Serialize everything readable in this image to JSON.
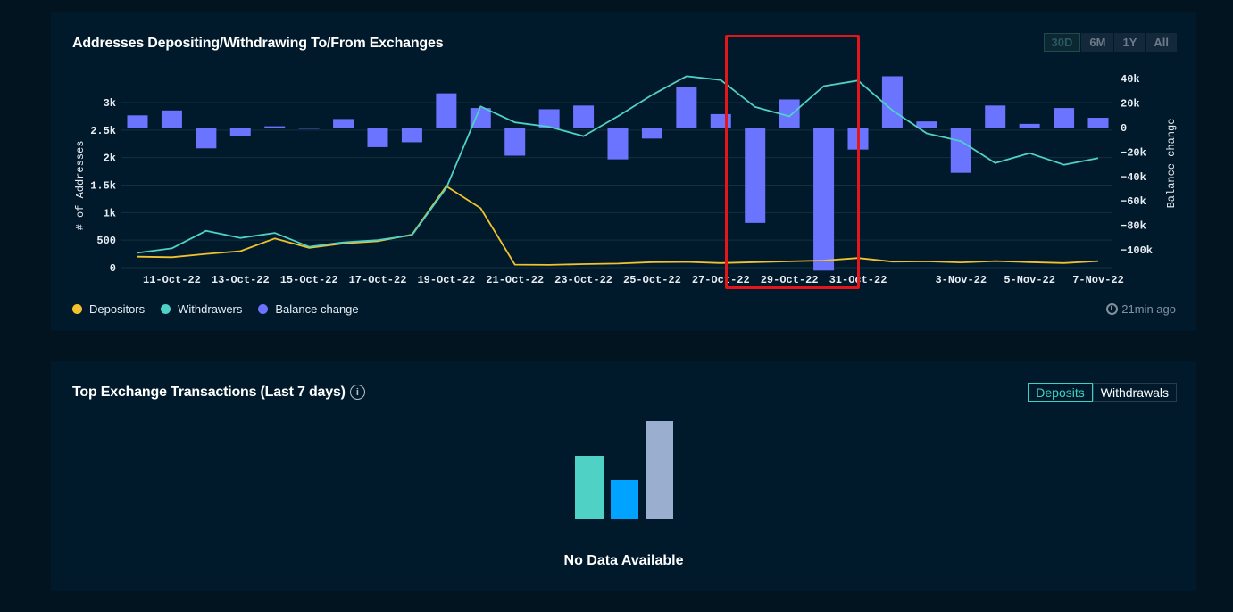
{
  "deposit_chart": {
    "title": "Addresses Depositing/Withdrawing To/From Exchanges",
    "range_buttons": [
      {
        "label": "30D",
        "active": true
      },
      {
        "label": "6M",
        "active": false
      },
      {
        "label": "1Y",
        "active": false
      },
      {
        "label": "All",
        "active": false
      }
    ],
    "legend": [
      {
        "label": "Depositors",
        "color": "#f2c12e"
      },
      {
        "label": "Withdrawers",
        "color": "#4fd1c5"
      },
      {
        "label": "Balance change",
        "color": "#6b74ff"
      }
    ],
    "updated": "21min ago"
  },
  "chart_data": {
    "type": "bar+line",
    "ylabel": "# of Addresses",
    "y2label": "Balance change",
    "ylim": [
      0,
      3000
    ],
    "y2lim": [
      -115000,
      40000
    ],
    "y_ticks": [
      0,
      500,
      1000,
      1500,
      2000,
      2500,
      3000
    ],
    "y_tick_labels": [
      "0",
      "500",
      "1k",
      "1.5k",
      "2k",
      "2.5k",
      "3k"
    ],
    "y2_ticks": [
      40000,
      20000,
      0,
      -20000,
      -40000,
      -60000,
      -80000,
      -100000
    ],
    "y2_tick_labels": [
      "40k",
      "20k",
      "0",
      "−20k",
      "−40k",
      "−60k",
      "−80k",
      "−100k"
    ],
    "x_tick_labels": [
      "11-Oct-22",
      "13-Oct-22",
      "15-Oct-22",
      "17-Oct-22",
      "19-Oct-22",
      "21-Oct-22",
      "23-Oct-22",
      "25-Oct-22",
      "27-Oct-22",
      "29-Oct-22",
      "31-Oct-22",
      "3-Nov-22",
      "5-Nov-22",
      "7-Nov-22"
    ],
    "x_tick_index": [
      1,
      3,
      5,
      7,
      9,
      11,
      13,
      15,
      17,
      19,
      21,
      24,
      26,
      28
    ],
    "x": [
      "10-Oct-22",
      "11-Oct-22",
      "12-Oct-22",
      "13-Oct-22",
      "14-Oct-22",
      "15-Oct-22",
      "16-Oct-22",
      "17-Oct-22",
      "18-Oct-22",
      "19-Oct-22",
      "20-Oct-22",
      "21-Oct-22",
      "22-Oct-22",
      "23-Oct-22",
      "24-Oct-22",
      "25-Oct-22",
      "26-Oct-22",
      "27-Oct-22",
      "28-Oct-22",
      "29-Oct-22",
      "30-Oct-22",
      "31-Oct-22",
      "1-Nov-22",
      "2-Nov-22",
      "3-Nov-22",
      "4-Nov-22",
      "5-Nov-22",
      "6-Nov-22",
      "7-Nov-22"
    ],
    "series": [
      {
        "name": "Depositors",
        "axis": "left",
        "kind": "line",
        "color": "#f2c12e",
        "values": [
          200,
          190,
          250,
          300,
          530,
          360,
          440,
          480,
          600,
          1480,
          1080,
          55,
          50,
          65,
          75,
          100,
          105,
          85,
          100,
          115,
          130,
          175,
          110,
          115,
          95,
          120,
          100,
          85,
          120
        ]
      },
      {
        "name": "Withdrawers",
        "axis": "left",
        "kind": "line",
        "color": "#4fd1c5",
        "values": [
          270,
          350,
          670,
          540,
          630,
          380,
          460,
          500,
          590,
          1450,
          2930,
          2640,
          2560,
          2390,
          2750,
          3140,
          3480,
          3410,
          2920,
          2750,
          3300,
          3400,
          2860,
          2440,
          2300,
          1900,
          2080,
          1870,
          1990
        ]
      },
      {
        "name": "Balance change",
        "axis": "right",
        "kind": "bar",
        "color": "#6b74ff",
        "values": [
          10000,
          14000,
          -17000,
          -7000,
          1000,
          -1000,
          7000,
          -16000,
          -12000,
          28000,
          16000,
          -23000,
          15000,
          18000,
          -26000,
          -9000,
          33000,
          11000,
          -78000,
          23000,
          -117000,
          -18000,
          42000,
          5000,
          -37000,
          18000,
          3000,
          16000,
          8000
        ]
      }
    ]
  },
  "tx_panel": {
    "title": "Top Exchange Transactions (Last 7 days)",
    "info_glyph": "i",
    "toggle": [
      {
        "label": "Deposits",
        "active": true
      },
      {
        "label": "Withdrawals",
        "active": false
      }
    ],
    "empty_message": "No Data Available",
    "empty_art_colors": [
      "#4fd1c5",
      "#00a3ff",
      "#9aaed0"
    ]
  }
}
